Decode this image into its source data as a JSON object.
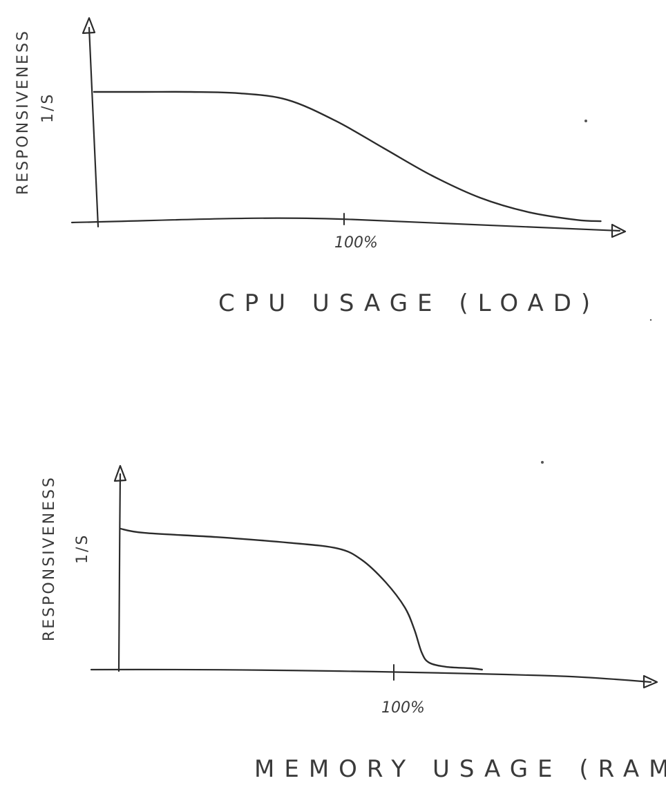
{
  "chart_data": [
    {
      "type": "line",
      "xlabel": "CPU USAGE (LOAD)",
      "ylabel": [
        "RESPONSIVENESS",
        "1/S"
      ],
      "x_ticks": [
        "100%"
      ],
      "x_unit": "% of capacity",
      "xlim": [
        0,
        213
      ],
      "ylim": [
        0,
        1
      ],
      "grid": false,
      "series": [
        {
          "x": [
            0,
            20,
            40,
            60,
            80,
            100,
            120,
            140,
            160,
            180,
            200,
            210
          ],
          "y": [
            1.0,
            1.0,
            1.0,
            0.99,
            0.94,
            0.78,
            0.57,
            0.36,
            0.19,
            0.08,
            0.02,
            0.01
          ]
        }
      ]
    },
    {
      "type": "line",
      "xlabel": "MEMORY USAGE (RAM)",
      "ylabel": [
        "RESPONSIVENESS",
        "1/S"
      ],
      "x_ticks": [
        "100%"
      ],
      "x_unit": "% of capacity",
      "xlim": [
        0,
        195
      ],
      "ylim": [
        0,
        1
      ],
      "grid": false,
      "series": [
        {
          "x": [
            0,
            10,
            40,
            70,
            90,
            100,
            110,
            118,
            122,
            125,
            128,
            135,
            145,
            150
          ],
          "y": [
            1.0,
            0.97,
            0.94,
            0.9,
            0.86,
            0.78,
            0.62,
            0.44,
            0.28,
            0.12,
            0.05,
            0.02,
            0.01,
            0.0
          ]
        }
      ]
    }
  ]
}
